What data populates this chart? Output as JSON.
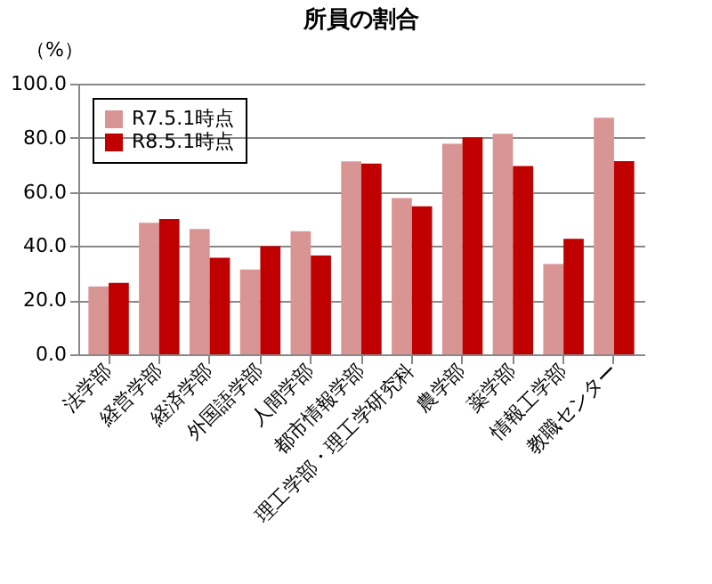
{
  "chart_data": {
    "type": "bar",
    "title": "所員の割合",
    "ylabel": "（%）",
    "categories": [
      "法学部",
      "経営学部",
      "経済学部",
      "外国語学部",
      "人間学部",
      "都市情報学部",
      "理工学部・理工学研究科",
      "農学部",
      "薬学部",
      "情報工学部",
      "教職センター"
    ],
    "series": [
      {
        "name": "R7.5.1時点",
        "color": "#d99594",
        "values": [
          25.1,
          48.6,
          46.3,
          31.3,
          45.5,
          71.3,
          57.7,
          77.8,
          81.5,
          33.4,
          87.4
        ]
      },
      {
        "name": "R8.5.1時点",
        "color": "#c00000",
        "values": [
          26.4,
          50.0,
          35.7,
          40.0,
          36.5,
          70.5,
          54.7,
          80.2,
          69.6,
          42.7,
          71.4
        ]
      }
    ],
    "ylim": [
      0,
      100
    ],
    "yticks": [
      {
        "value": 0,
        "label": "0.0"
      },
      {
        "value": 20,
        "label": "20.0"
      },
      {
        "value": 40,
        "label": "40.0"
      },
      {
        "value": 60,
        "label": "60.0"
      },
      {
        "value": 80,
        "label": "80.0"
      },
      {
        "value": 100,
        "label": "100.0"
      }
    ],
    "grid": "y",
    "legend": "top left"
  }
}
